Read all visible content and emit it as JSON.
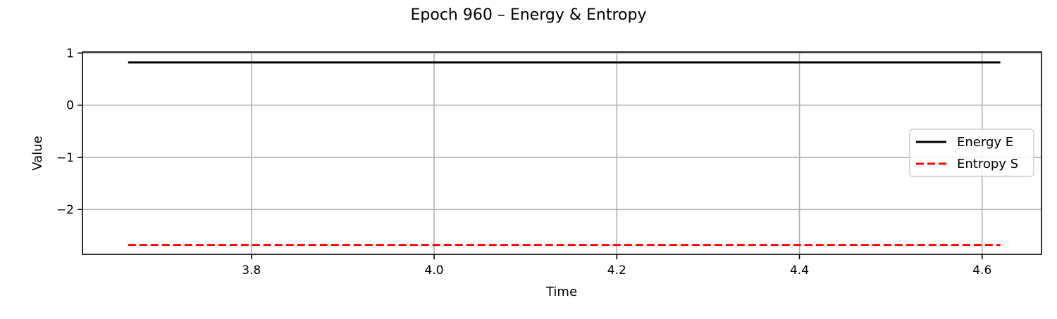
{
  "chart_data": {
    "type": "line",
    "title": "Epoch 960 – Energy & Entropy",
    "xlabel": "Time",
    "ylabel": "Value",
    "xlim": [
      3.615,
      4.665
    ],
    "ylim": [
      -2.86,
      1.02
    ],
    "xticks": [
      3.8,
      4.0,
      4.2,
      4.4,
      4.6
    ],
    "xtick_labels": [
      "3.8",
      "4.0",
      "4.2",
      "4.4",
      "4.6"
    ],
    "yticks": [
      1,
      0,
      -1,
      -2
    ],
    "ytick_labels": [
      "1",
      "0",
      "−1",
      "−2"
    ],
    "grid": true,
    "legend_position": "center-right",
    "series": [
      {
        "name": "Energy E",
        "color": "#000000",
        "linestyle": "solid",
        "x": [
          3.665,
          4.62
        ],
        "y": [
          0.82,
          0.82
        ]
      },
      {
        "name": "Entropy S",
        "color": "#ff0000",
        "linestyle": "dashed",
        "x": [
          3.665,
          4.62
        ],
        "y": [
          -2.68,
          -2.68
        ]
      }
    ]
  }
}
